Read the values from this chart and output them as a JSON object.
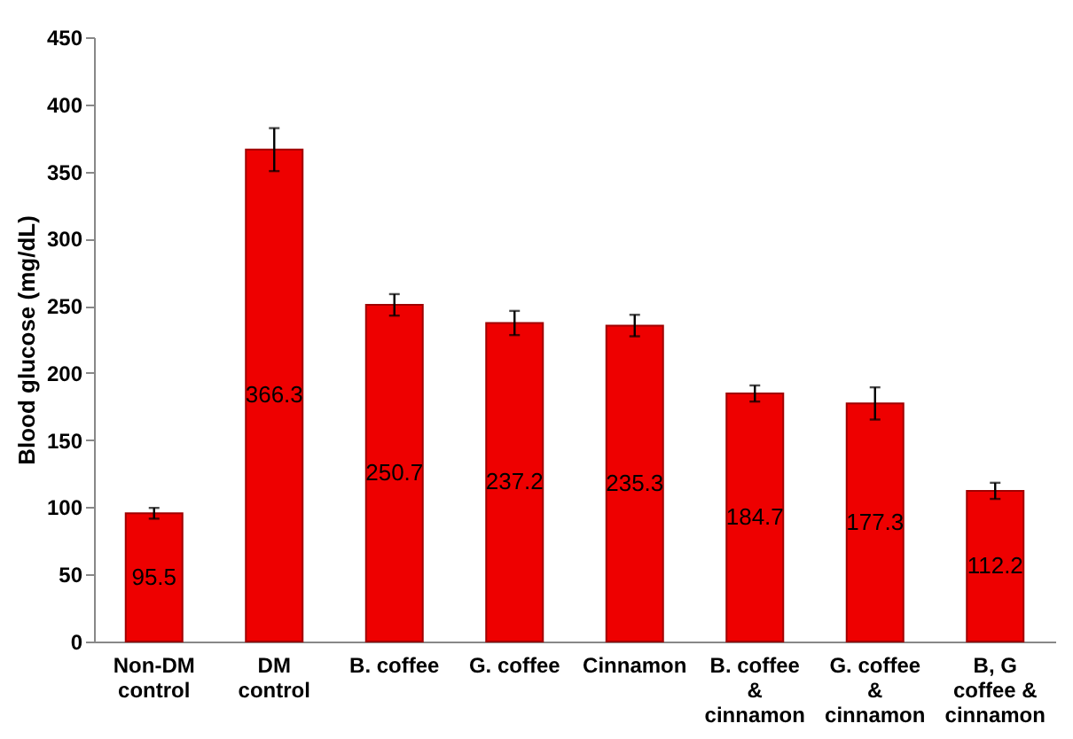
{
  "chart_data": {
    "type": "bar",
    "ylabel": "Blood glucose (mg/dL)",
    "categories": [
      "Non-DM\ncontrol",
      "DM\ncontrol",
      "B. coffee",
      "G. coffee",
      "Cinnamon",
      "B. coffee\n&\ncinnamon",
      "G. coffee\n&\ncinnamon",
      "B, G\ncoffee &\ncinnamon"
    ],
    "values": [
      95.5,
      366.3,
      250.7,
      237.2,
      235.3,
      184.7,
      177.3,
      112.2
    ],
    "errors": [
      4,
      16,
      8,
      9,
      8,
      6,
      12,
      6
    ],
    "color": "#ee0000",
    "ylim": [
      0,
      450
    ],
    "yticks": [
      0,
      50,
      100,
      150,
      200,
      250,
      300,
      350,
      400,
      450
    ],
    "data_labels": true,
    "grid": false
  }
}
